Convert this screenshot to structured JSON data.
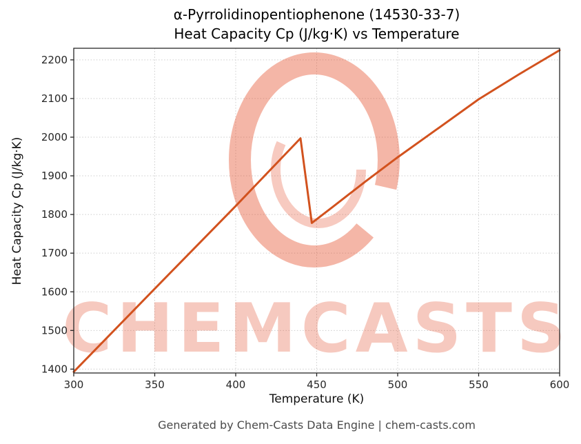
{
  "title": {
    "line1": "α-Pyrrolidinopentiophenone (14530-33-7)",
    "line2": "Heat Capacity Cp (J/kg·K) vs Temperature"
  },
  "footer": "Generated by Chem-Casts Data Engine | chem-casts.com",
  "watermark": {
    "text": "CHEMCASTS",
    "color": "#e4502e"
  },
  "chart_data": {
    "type": "line",
    "title": "α-Pyrrolidinopentiophenone (14530-33-7) — Heat Capacity Cp (J/kg·K) vs Temperature",
    "xlabel": "Temperature (K)",
    "ylabel": "Heat Capacity Cp (J/kg·K)",
    "xlim": [
      300,
      600
    ],
    "ylim": [
      1390,
      2230
    ],
    "xticks": [
      300,
      350,
      400,
      450,
      500,
      550,
      600
    ],
    "yticks": [
      1400,
      1500,
      1600,
      1700,
      1800,
      1900,
      2000,
      2100,
      2200
    ],
    "grid": true,
    "legend": "none",
    "line_color": "#d2521e",
    "series": [
      {
        "name": "heat-capacity",
        "x": [
          300,
          350,
          400,
          440,
          447,
          460,
          480,
          500,
          525,
          550,
          575,
          600
        ],
        "y": [
          1393,
          1608,
          1822,
          1997,
          1778,
          1820,
          1885,
          1948,
          2023,
          2098,
          2163,
          2225
        ]
      }
    ]
  }
}
